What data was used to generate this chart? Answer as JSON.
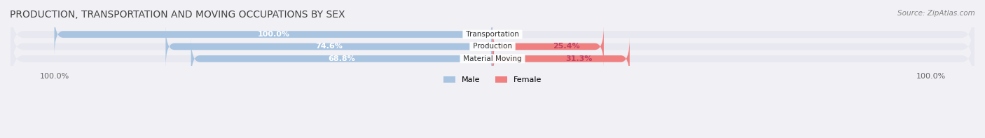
{
  "title": "PRODUCTION, TRANSPORTATION AND MOVING OCCUPATIONS BY SEX",
  "source": "Source: ZipAtlas.com",
  "categories": [
    "Transportation",
    "Production",
    "Material Moving"
  ],
  "male_pcts": [
    100.0,
    74.6,
    68.8
  ],
  "female_pcts": [
    0.0,
    25.4,
    31.3
  ],
  "male_color": "#a8c4e0",
  "female_color": "#f08080",
  "label_color_male": "#6fa8d0",
  "label_color_female": "#e06080",
  "bar_height": 0.55,
  "bg_color": "#f0f0f5",
  "bar_bg_color": "#e8e8f0",
  "title_fontsize": 10,
  "source_fontsize": 7.5,
  "label_fontsize": 8,
  "tick_fontsize": 8
}
